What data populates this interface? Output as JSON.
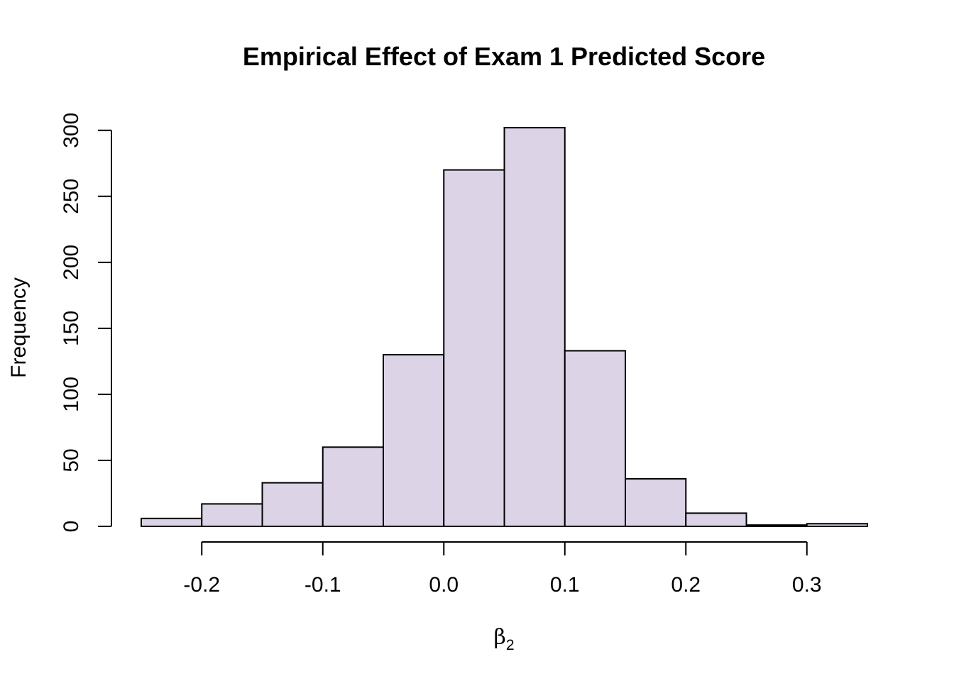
{
  "chart_data": {
    "type": "bar",
    "title": "Empirical Effect of Exam 1 Predicted Score",
    "xlabel": {
      "symbol": "β",
      "subscript": "2"
    },
    "ylabel": "Frequency",
    "bins": [
      {
        "start": -0.25,
        "end": -0.2,
        "count": 6
      },
      {
        "start": -0.2,
        "end": -0.15,
        "count": 17
      },
      {
        "start": -0.15,
        "end": -0.1,
        "count": 33
      },
      {
        "start": -0.1,
        "end": -0.05,
        "count": 60
      },
      {
        "start": -0.05,
        "end": 0.0,
        "count": 130
      },
      {
        "start": 0.0,
        "end": 0.05,
        "count": 270
      },
      {
        "start": 0.05,
        "end": 0.1,
        "count": 302
      },
      {
        "start": 0.1,
        "end": 0.15,
        "count": 133
      },
      {
        "start": 0.15,
        "end": 0.2,
        "count": 36
      },
      {
        "start": 0.2,
        "end": 0.25,
        "count": 10
      },
      {
        "start": 0.25,
        "end": 0.3,
        "count": 1
      },
      {
        "start": 0.3,
        "end": 0.35,
        "count": 2
      }
    ],
    "xlim": [
      -0.25,
      0.35
    ],
    "ylim": [
      0,
      302
    ],
    "x_ticks": [
      -0.2,
      -0.1,
      0.0,
      0.1,
      0.2,
      0.3
    ],
    "x_tick_labels": [
      "-0.2",
      "-0.1",
      "0.0",
      "0.1",
      "0.2",
      "0.3"
    ],
    "y_ticks": [
      0,
      50,
      100,
      150,
      200,
      250,
      300
    ],
    "y_tick_labels": [
      "0",
      "50",
      "100",
      "150",
      "200",
      "250",
      "300"
    ],
    "bar_color": "#dcd3e6",
    "edge_color": "#000000",
    "grid": false,
    "legend": "none"
  }
}
